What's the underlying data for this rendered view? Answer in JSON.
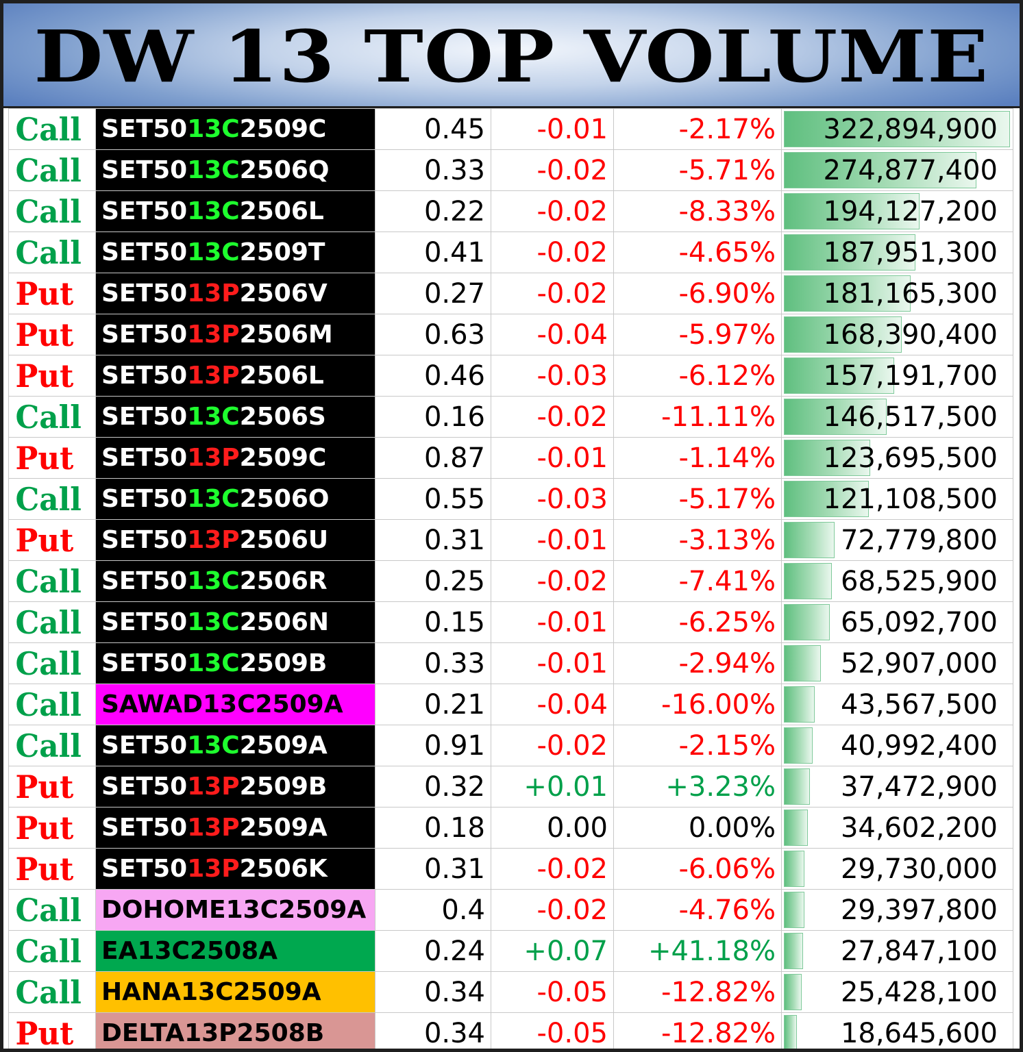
{
  "title": "DW 13 TOP VOLUME",
  "colors": {
    "call": "#00a04a",
    "put": "#ff0000",
    "code_call": "#1eff2e",
    "code_put": "#ff1c1c",
    "negative": "#ff0000",
    "positive": "#00a04a",
    "volume_bar": "#5fbf7f"
  },
  "max_volume": 322894900,
  "rows": [
    {
      "type": "Call",
      "prefix": "SET50",
      "code": "13C",
      "suffix": "2509C",
      "name_bg": "#000000",
      "name_color": "#ffffff",
      "price": "0.45",
      "change": "-0.01",
      "pct": "-2.17%",
      "sign": "neg",
      "volume": "322,894,900",
      "volume_value": 322894900
    },
    {
      "type": "Call",
      "prefix": "SET50",
      "code": "13C",
      "suffix": "2506Q",
      "name_bg": "#000000",
      "name_color": "#ffffff",
      "price": "0.33",
      "change": "-0.02",
      "pct": "-5.71%",
      "sign": "neg",
      "volume": "274,877,400",
      "volume_value": 274877400
    },
    {
      "type": "Call",
      "prefix": "SET50",
      "code": "13C",
      "suffix": "2506L",
      "name_bg": "#000000",
      "name_color": "#ffffff",
      "price": "0.22",
      "change": "-0.02",
      "pct": "-8.33%",
      "sign": "neg",
      "volume": "194,127,200",
      "volume_value": 194127200
    },
    {
      "type": "Call",
      "prefix": "SET50",
      "code": "13C",
      "suffix": "2509T",
      "name_bg": "#000000",
      "name_color": "#ffffff",
      "price": "0.41",
      "change": "-0.02",
      "pct": "-4.65%",
      "sign": "neg",
      "volume": "187,951,300",
      "volume_value": 187951300
    },
    {
      "type": "Put",
      "prefix": "SET50",
      "code": "13P",
      "suffix": "2506V",
      "name_bg": "#000000",
      "name_color": "#ffffff",
      "price": "0.27",
      "change": "-0.02",
      "pct": "-6.90%",
      "sign": "neg",
      "volume": "181,165,300",
      "volume_value": 181165300
    },
    {
      "type": "Put",
      "prefix": "SET50",
      "code": "13P",
      "suffix": "2506M",
      "name_bg": "#000000",
      "name_color": "#ffffff",
      "price": "0.63",
      "change": "-0.04",
      "pct": "-5.97%",
      "sign": "neg",
      "volume": "168,390,400",
      "volume_value": 168390400
    },
    {
      "type": "Put",
      "prefix": "SET50",
      "code": "13P",
      "suffix": "2506L",
      "name_bg": "#000000",
      "name_color": "#ffffff",
      "price": "0.46",
      "change": "-0.03",
      "pct": "-6.12%",
      "sign": "neg",
      "volume": "157,191,700",
      "volume_value": 157191700
    },
    {
      "type": "Call",
      "prefix": "SET50",
      "code": "13C",
      "suffix": "2506S",
      "name_bg": "#000000",
      "name_color": "#ffffff",
      "price": "0.16",
      "change": "-0.02",
      "pct": "-11.11%",
      "sign": "neg",
      "volume": "146,517,500",
      "volume_value": 146517500
    },
    {
      "type": "Put",
      "prefix": "SET50",
      "code": "13P",
      "suffix": "2509C",
      "name_bg": "#000000",
      "name_color": "#ffffff",
      "price": "0.87",
      "change": "-0.01",
      "pct": "-1.14%",
      "sign": "neg",
      "volume": "123,695,500",
      "volume_value": 123695500
    },
    {
      "type": "Call",
      "prefix": "SET50",
      "code": "13C",
      "suffix": "2506O",
      "name_bg": "#000000",
      "name_color": "#ffffff",
      "price": "0.55",
      "change": "-0.03",
      "pct": "-5.17%",
      "sign": "neg",
      "volume": "121,108,500",
      "volume_value": 121108500
    },
    {
      "type": "Put",
      "prefix": "SET50",
      "code": "13P",
      "suffix": "2506U",
      "name_bg": "#000000",
      "name_color": "#ffffff",
      "price": "0.31",
      "change": "-0.01",
      "pct": "-3.13%",
      "sign": "neg",
      "volume": "72,779,800",
      "volume_value": 72779800
    },
    {
      "type": "Call",
      "prefix": "SET50",
      "code": "13C",
      "suffix": "2506R",
      "name_bg": "#000000",
      "name_color": "#ffffff",
      "price": "0.25",
      "change": "-0.02",
      "pct": "-7.41%",
      "sign": "neg",
      "volume": "68,525,900",
      "volume_value": 68525900
    },
    {
      "type": "Call",
      "prefix": "SET50",
      "code": "13C",
      "suffix": "2506N",
      "name_bg": "#000000",
      "name_color": "#ffffff",
      "price": "0.15",
      "change": "-0.01",
      "pct": "-6.25%",
      "sign": "neg",
      "volume": "65,092,700",
      "volume_value": 65092700
    },
    {
      "type": "Call",
      "prefix": "SET50",
      "code": "13C",
      "suffix": "2509B",
      "name_bg": "#000000",
      "name_color": "#ffffff",
      "price": "0.33",
      "change": "-0.01",
      "pct": "-2.94%",
      "sign": "neg",
      "volume": "52,907,000",
      "volume_value": 52907000
    },
    {
      "type": "Call",
      "prefix": "SAWAD13C2509A",
      "code": "",
      "suffix": "",
      "name_bg": "#ff00ff",
      "name_color": "#000000",
      "price": "0.21",
      "change": "-0.04",
      "pct": "-16.00%",
      "sign": "neg",
      "volume": "43,567,500",
      "volume_value": 43567500
    },
    {
      "type": "Call",
      "prefix": "SET50",
      "code": "13C",
      "suffix": "2509A",
      "name_bg": "#000000",
      "name_color": "#ffffff",
      "price": "0.91",
      "change": "-0.02",
      "pct": "-2.15%",
      "sign": "neg",
      "volume": "40,992,400",
      "volume_value": 40992400
    },
    {
      "type": "Put",
      "prefix": "SET50",
      "code": "13P",
      "suffix": "2509B",
      "name_bg": "#000000",
      "name_color": "#ffffff",
      "price": "0.32",
      "change": "+0.01",
      "pct": "+3.23%",
      "sign": "pos",
      "volume": "37,472,900",
      "volume_value": 37472900
    },
    {
      "type": "Put",
      "prefix": "SET50",
      "code": "13P",
      "suffix": "2509A",
      "name_bg": "#000000",
      "name_color": "#ffffff",
      "price": "0.18",
      "change": "0.00",
      "pct": "0.00%",
      "sign": "zero",
      "volume": "34,602,200",
      "volume_value": 34602200
    },
    {
      "type": "Put",
      "prefix": "SET50",
      "code": "13P",
      "suffix": "2506K",
      "name_bg": "#000000",
      "name_color": "#ffffff",
      "price": "0.31",
      "change": "-0.02",
      "pct": "-6.06%",
      "sign": "neg",
      "volume": "29,730,000",
      "volume_value": 29730000
    },
    {
      "type": "Call",
      "prefix": "DOHOME13C2509A",
      "code": "",
      "suffix": "",
      "name_bg": "#f7a7f3",
      "name_color": "#000000",
      "price": "0.4",
      "change": "-0.02",
      "pct": "-4.76%",
      "sign": "neg",
      "volume": "29,397,800",
      "volume_value": 29397800
    },
    {
      "type": "Call",
      "prefix": "EA13C2508A",
      "code": "",
      "suffix": "",
      "name_bg": "#00a84f",
      "name_color": "#000000",
      "price": "0.24",
      "change": "+0.07",
      "pct": "+41.18%",
      "sign": "pos",
      "volume": "27,847,100",
      "volume_value": 27847100
    },
    {
      "type": "Call",
      "prefix": "HANA13C2509A",
      "code": "",
      "suffix": "",
      "name_bg": "#ffc000",
      "name_color": "#000000",
      "price": "0.34",
      "change": "-0.05",
      "pct": "-12.82%",
      "sign": "neg",
      "volume": "25,428,100",
      "volume_value": 25428100
    },
    {
      "type": "Put",
      "prefix": "DELTA13P2508B",
      "code": "",
      "suffix": "",
      "name_bg": "#d99694",
      "name_color": "#000000",
      "price": "0.34",
      "change": "-0.05",
      "pct": "-12.82%",
      "sign": "neg",
      "volume": "18,645,600",
      "volume_value": 18645600
    }
  ]
}
